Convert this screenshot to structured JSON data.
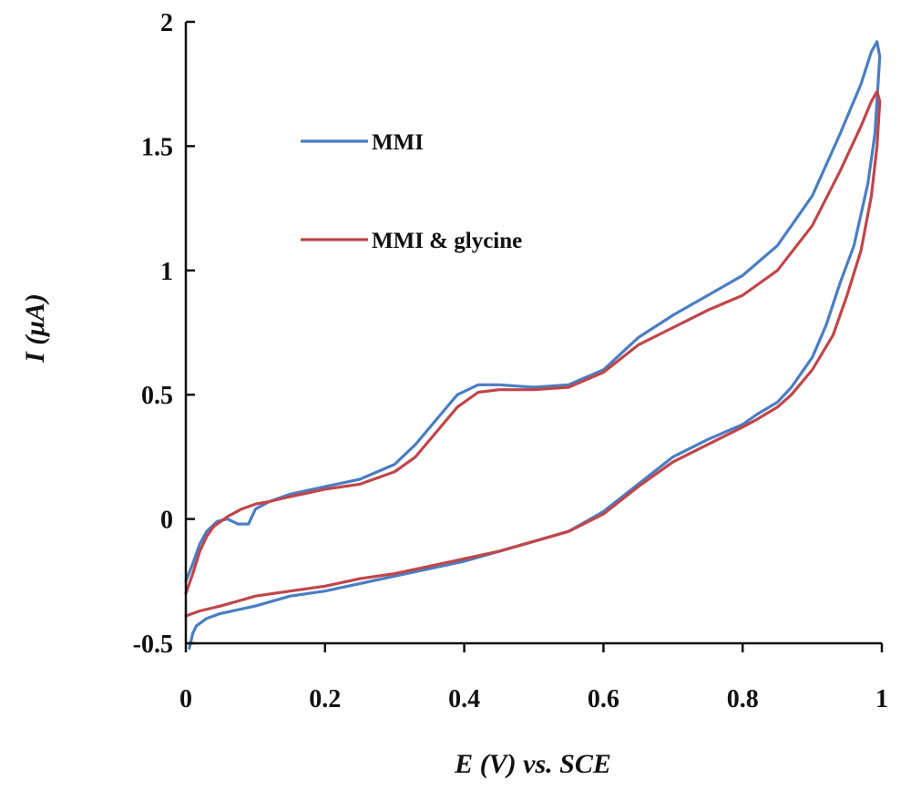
{
  "chart_data": {
    "type": "line",
    "title": "",
    "xlabel": "E (V) vs. SCE",
    "ylabel": "I (μA)",
    "xlim": [
      0,
      1
    ],
    "ylim": [
      -0.5,
      2
    ],
    "x_ticks": [
      "0",
      "0.2",
      "0.4",
      "0.6",
      "0.8",
      "1"
    ],
    "y_ticks": [
      "-0.5",
      "0",
      "0.5",
      "1",
      "1.5",
      "2"
    ],
    "grid": false,
    "legend_position": "top-left",
    "series": [
      {
        "name": "MMI",
        "color": "#4a7ec4",
        "points": [
          [
            0.0,
            -0.25
          ],
          [
            0.01,
            -0.18
          ],
          [
            0.02,
            -0.1
          ],
          [
            0.03,
            -0.05
          ],
          [
            0.045,
            -0.01
          ],
          [
            0.06,
            0.0
          ],
          [
            0.075,
            -0.02
          ],
          [
            0.09,
            -0.02
          ],
          [
            0.1,
            0.04
          ],
          [
            0.12,
            0.07
          ],
          [
            0.15,
            0.1
          ],
          [
            0.2,
            0.13
          ],
          [
            0.25,
            0.16
          ],
          [
            0.3,
            0.22
          ],
          [
            0.33,
            0.3
          ],
          [
            0.36,
            0.4
          ],
          [
            0.39,
            0.5
          ],
          [
            0.42,
            0.54
          ],
          [
            0.45,
            0.54
          ],
          [
            0.5,
            0.53
          ],
          [
            0.55,
            0.54
          ],
          [
            0.6,
            0.6
          ],
          [
            0.65,
            0.73
          ],
          [
            0.7,
            0.82
          ],
          [
            0.75,
            0.9
          ],
          [
            0.8,
            0.98
          ],
          [
            0.85,
            1.1
          ],
          [
            0.9,
            1.3
          ],
          [
            0.94,
            1.55
          ],
          [
            0.97,
            1.75
          ],
          [
            0.985,
            1.88
          ],
          [
            0.993,
            1.92
          ],
          [
            0.997,
            1.86
          ],
          [
            0.99,
            1.55
          ],
          [
            0.98,
            1.35
          ],
          [
            0.96,
            1.1
          ],
          [
            0.94,
            0.95
          ],
          [
            0.92,
            0.78
          ],
          [
            0.9,
            0.65
          ],
          [
            0.87,
            0.53
          ],
          [
            0.85,
            0.47
          ],
          [
            0.82,
            0.42
          ],
          [
            0.8,
            0.38
          ],
          [
            0.75,
            0.32
          ],
          [
            0.7,
            0.25
          ],
          [
            0.65,
            0.14
          ],
          [
            0.6,
            0.03
          ],
          [
            0.55,
            -0.05
          ],
          [
            0.5,
            -0.09
          ],
          [
            0.45,
            -0.13
          ],
          [
            0.4,
            -0.17
          ],
          [
            0.35,
            -0.2
          ],
          [
            0.3,
            -0.23
          ],
          [
            0.25,
            -0.26
          ],
          [
            0.2,
            -0.29
          ],
          [
            0.15,
            -0.31
          ],
          [
            0.1,
            -0.35
          ],
          [
            0.05,
            -0.38
          ],
          [
            0.03,
            -0.4
          ],
          [
            0.015,
            -0.43
          ],
          [
            0.01,
            -0.46
          ],
          [
            0.005,
            -0.52
          ]
        ]
      },
      {
        "name": "MMI & glycine",
        "color": "#c0464a",
        "points": [
          [
            0.0,
            -0.3
          ],
          [
            0.01,
            -0.22
          ],
          [
            0.02,
            -0.13
          ],
          [
            0.03,
            -0.07
          ],
          [
            0.04,
            -0.03
          ],
          [
            0.05,
            -0.01
          ],
          [
            0.06,
            0.01
          ],
          [
            0.08,
            0.04
          ],
          [
            0.1,
            0.06
          ],
          [
            0.12,
            0.07
          ],
          [
            0.15,
            0.09
          ],
          [
            0.2,
            0.12
          ],
          [
            0.25,
            0.14
          ],
          [
            0.3,
            0.19
          ],
          [
            0.33,
            0.25
          ],
          [
            0.36,
            0.35
          ],
          [
            0.39,
            0.45
          ],
          [
            0.42,
            0.51
          ],
          [
            0.45,
            0.52
          ],
          [
            0.5,
            0.52
          ],
          [
            0.55,
            0.53
          ],
          [
            0.6,
            0.59
          ],
          [
            0.65,
            0.7
          ],
          [
            0.7,
            0.77
          ],
          [
            0.75,
            0.84
          ],
          [
            0.8,
            0.9
          ],
          [
            0.85,
            1.0
          ],
          [
            0.9,
            1.18
          ],
          [
            0.94,
            1.4
          ],
          [
            0.97,
            1.58
          ],
          [
            0.985,
            1.68
          ],
          [
            0.993,
            1.72
          ],
          [
            0.997,
            1.68
          ],
          [
            0.993,
            1.5
          ],
          [
            0.985,
            1.3
          ],
          [
            0.97,
            1.08
          ],
          [
            0.95,
            0.9
          ],
          [
            0.93,
            0.74
          ],
          [
            0.9,
            0.6
          ],
          [
            0.87,
            0.5
          ],
          [
            0.85,
            0.45
          ],
          [
            0.82,
            0.4
          ],
          [
            0.8,
            0.37
          ],
          [
            0.75,
            0.3
          ],
          [
            0.7,
            0.23
          ],
          [
            0.65,
            0.13
          ],
          [
            0.6,
            0.02
          ],
          [
            0.55,
            -0.05
          ],
          [
            0.5,
            -0.09
          ],
          [
            0.45,
            -0.13
          ],
          [
            0.4,
            -0.16
          ],
          [
            0.35,
            -0.19
          ],
          [
            0.3,
            -0.22
          ],
          [
            0.25,
            -0.24
          ],
          [
            0.2,
            -0.27
          ],
          [
            0.15,
            -0.29
          ],
          [
            0.1,
            -0.31
          ],
          [
            0.05,
            -0.35
          ],
          [
            0.02,
            -0.37
          ],
          [
            0.0,
            -0.39
          ]
        ]
      }
    ]
  }
}
